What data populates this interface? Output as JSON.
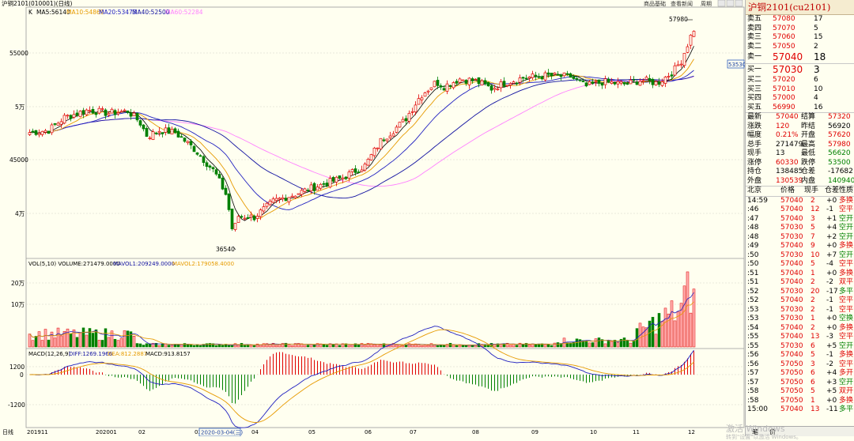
{
  "window": {
    "title": "沪铜2101(010001)(日线)",
    "btn_quote": "商品基础",
    "btn_info": "查看新闻",
    "btn_period": "周期"
  },
  "kline": {
    "ma_label": "MA5:56140",
    "ma10": "MA10:54869",
    "ma20": "MA20:53473",
    "ma40": "MA40:52500",
    "ma60": "MA60:52284",
    "y_labels": [
      "55000",
      "5万",
      "45000",
      "4万"
    ],
    "y_labels_minor": [
      "5万",
      "4万"
    ],
    "high_label": "57980",
    "low_label": "36540",
    "right_price_tag": "53530"
  },
  "volume": {
    "label": "VOL(5,10) VOLUME:271479.0000",
    "mavol1": "MAVOL1:209249.0000",
    "mavol2": "MAVOL2:179058.4000",
    "y_labels": [
      "20万",
      "10万"
    ]
  },
  "macd": {
    "label": "MACD(12,26,9)",
    "diff": "DIFF:1269.1966",
    "dea": "DEA:812.2887",
    "macd_val": "MACD:913.8157",
    "y_labels": [
      "1200",
      "0",
      "-1200"
    ]
  },
  "xaxis": {
    "day_label": "日线",
    "labels": [
      "201911",
      "202001",
      "02",
      "03",
      "04",
      "05",
      "06",
      "07",
      "08",
      "09",
      "10",
      "11",
      "12"
    ],
    "cursor_date": "2020-03-04(三)"
  },
  "colors": {
    "up": "#e00000",
    "down": "#008000",
    "ma5": "#000000",
    "ma10": "#e69a00",
    "ma20": "#2020c0",
    "ma40": "#1010a0",
    "ma60": "#ff80ff"
  },
  "panel": {
    "title": "沪铜2101(cu2101)",
    "asks": [
      {
        "label": "卖五",
        "price": "57080",
        "vol": "17"
      },
      {
        "label": "卖四",
        "price": "57070",
        "vol": "5"
      },
      {
        "label": "卖三",
        "price": "57060",
        "vol": "15"
      },
      {
        "label": "卖二",
        "price": "57050",
        "vol": "2"
      },
      {
        "label": "卖一",
        "price": "57040",
        "vol": "18"
      }
    ],
    "bids": [
      {
        "label": "买一",
        "price": "57030",
        "vol": "3"
      },
      {
        "label": "买二",
        "price": "57020",
        "vol": "6"
      },
      {
        "label": "买三",
        "price": "57010",
        "vol": "10"
      },
      {
        "label": "买四",
        "price": "57000",
        "vol": "4"
      },
      {
        "label": "买五",
        "price": "56990",
        "vol": "16"
      }
    ],
    "stats": [
      {
        "l1": "最新",
        "v1": "57040",
        "c1": "red",
        "l2": "结算",
        "v2": "57320",
        "c2": "red"
      },
      {
        "l1": "涨跌",
        "v1": "120",
        "c1": "red",
        "l2": "昨结",
        "v2": "56920",
        "c2": "blk"
      },
      {
        "l1": "幅度",
        "v1": "0.21%",
        "c1": "red",
        "l2": "开盘",
        "v2": "57620",
        "c2": "red"
      },
      {
        "l1": "总手",
        "v1": "271479",
        "c1": "blk",
        "l2": "最高",
        "v2": "57980",
        "c2": "red"
      },
      {
        "l1": "现手",
        "v1": "13",
        "c1": "blk",
        "l2": "最低",
        "v2": "56620",
        "c2": "green"
      },
      {
        "l1": "涨停",
        "v1": "60330",
        "c1": "red",
        "l2": "跌停",
        "v2": "53500",
        "c2": "green"
      },
      {
        "l1": "持仓",
        "v1": "138485",
        "c1": "blk",
        "l2": "仓差",
        "v2": "-17682",
        "c2": "blk"
      },
      {
        "l1": "外盘",
        "v1": "130539",
        "c1": "red",
        "l2": "内盘",
        "v2": "140940",
        "c2": "green"
      }
    ],
    "tick_header": {
      "t": "北京",
      "p": "价格",
      "v": "现手",
      "d": "仓差",
      "n": "性质"
    },
    "ticks": [
      {
        "t": "14:59",
        "p": "57040",
        "v": "2",
        "d": "+0",
        "n": "多换",
        "nc": "red"
      },
      {
        "t": ":46",
        "p": "57040",
        "v": "12",
        "d": "-1",
        "n": "空平",
        "nc": "red"
      },
      {
        "t": ":47",
        "p": "57040",
        "v": "3",
        "d": "+1",
        "n": "空开",
        "nc": "green"
      },
      {
        "t": ":48",
        "p": "57030",
        "v": "5",
        "d": "+4",
        "n": "空开",
        "nc": "green"
      },
      {
        "t": ":48",
        "p": "57030",
        "v": "7",
        "d": "+2",
        "n": "空开",
        "nc": "green"
      },
      {
        "t": ":49",
        "p": "57040",
        "v": "9",
        "d": "+0",
        "n": "多换",
        "nc": "red"
      },
      {
        "t": ":50",
        "p": "57030",
        "v": "10",
        "d": "+7",
        "n": "空开",
        "nc": "green"
      },
      {
        "t": ":50",
        "p": "57040",
        "v": "5",
        "d": "-4",
        "n": "空平",
        "nc": "red"
      },
      {
        "t": ":51",
        "p": "57040",
        "v": "1",
        "d": "+0",
        "n": "多换",
        "nc": "red"
      },
      {
        "t": ":51",
        "p": "57040",
        "v": "2",
        "d": "-2",
        "n": "双平",
        "nc": "red"
      },
      {
        "t": ":52",
        "p": "57030",
        "v": "20",
        "d": "-17",
        "n": "多平",
        "nc": "green"
      },
      {
        "t": ":52",
        "p": "57040",
        "v": "2",
        "d": "-1",
        "n": "空平",
        "nc": "red"
      },
      {
        "t": ":53",
        "p": "57030",
        "v": "2",
        "d": "-1",
        "n": "空平",
        "nc": "red"
      },
      {
        "t": ":53",
        "p": "57030",
        "v": "1",
        "d": "+0",
        "n": "空换",
        "nc": "green"
      },
      {
        "t": ":54",
        "p": "57040",
        "v": "2",
        "d": "+0",
        "n": "多换",
        "nc": "red"
      },
      {
        "t": ":55",
        "p": "57040",
        "v": "13",
        "d": "-3",
        "n": "空平",
        "nc": "red"
      },
      {
        "t": ":55",
        "p": "57030",
        "v": "6",
        "d": "+5",
        "n": "空开",
        "nc": "green"
      },
      {
        "t": ":56",
        "p": "57040",
        "v": "5",
        "d": "-1",
        "n": "多换",
        "nc": "red"
      },
      {
        "t": ":56",
        "p": "57050",
        "v": "3",
        "d": "-2",
        "n": "空平",
        "nc": "red"
      },
      {
        "t": ":57",
        "p": "57050",
        "v": "6",
        "d": "+4",
        "n": "多开",
        "nc": "red"
      },
      {
        "t": ":57",
        "p": "57050",
        "v": "6",
        "d": "+3",
        "n": "空开",
        "nc": "green"
      },
      {
        "t": ":58",
        "p": "57050",
        "v": "5",
        "d": "+5",
        "n": "双开",
        "nc": "red"
      },
      {
        "t": ":58",
        "p": "57050",
        "v": "1",
        "d": "+0",
        "n": "多换",
        "nc": "red"
      },
      {
        "t": "15:00",
        "p": "57040",
        "v": "13",
        "d": "-11",
        "n": "多平",
        "nc": "green"
      }
    ],
    "tabs": [
      "笔",
      "价"
    ]
  },
  "watermark": {
    "line1": "激活 Windows",
    "line2": "转到\"设置\"以激活 Windows。"
  }
}
